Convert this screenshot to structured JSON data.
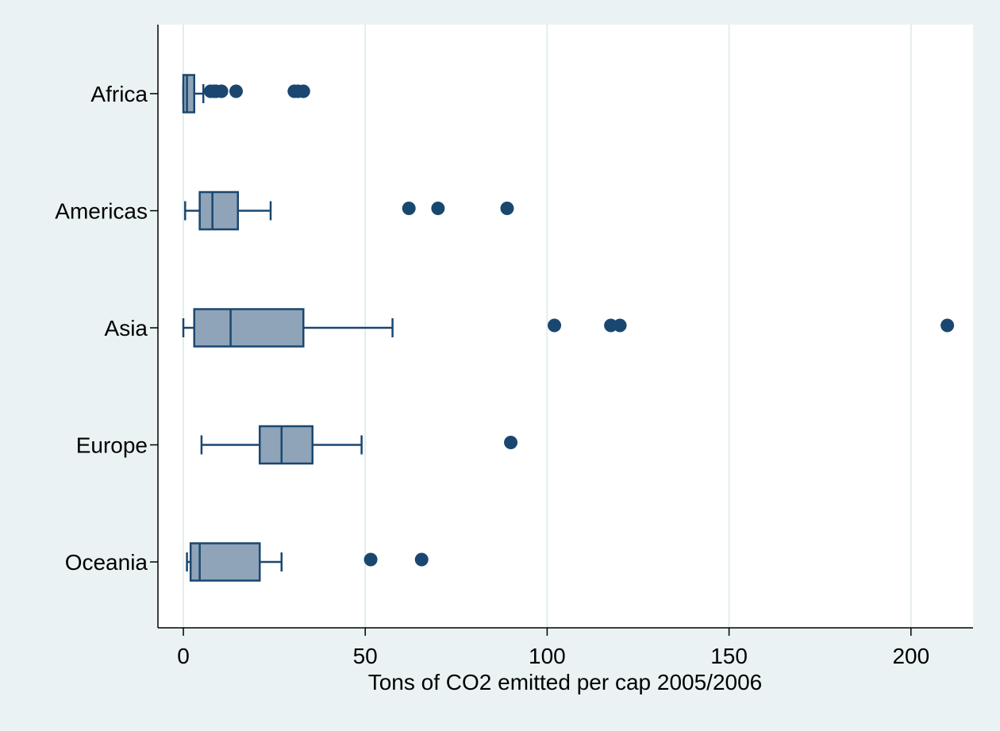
{
  "chart_data": {
    "type": "boxplot",
    "orientation": "horizontal",
    "title": "",
    "xlabel": "Tons of CO2 emitted per cap 2005/2006",
    "ylabel": "",
    "xlim": [
      -7,
      217
    ],
    "xticks": [
      0,
      50,
      100,
      150,
      200
    ],
    "grid": "vertical",
    "legend": "none",
    "categories": [
      "Africa",
      "Americas",
      "Asia",
      "Europe",
      "Oceania"
    ],
    "boxes": [
      {
        "name": "Africa",
        "whisker_low": 0,
        "q1": 0,
        "median": 1,
        "q3": 3,
        "whisker_high": 5.5,
        "outliers": [
          7.5,
          8.5,
          9,
          10.5,
          14.5,
          30.5,
          31.5,
          33
        ]
      },
      {
        "name": "Americas",
        "whisker_low": 0.5,
        "q1": 4.5,
        "median": 8,
        "q3": 15,
        "whisker_high": 24,
        "outliers": [
          62,
          70,
          89
        ]
      },
      {
        "name": "Asia",
        "whisker_low": 0,
        "q1": 3,
        "median": 13,
        "q3": 33,
        "whisker_high": 57.5,
        "outliers": [
          102,
          117.5,
          120,
          210
        ]
      },
      {
        "name": "Europe",
        "whisker_low": 5,
        "q1": 21,
        "median": 27,
        "q3": 35.5,
        "whisker_high": 49,
        "outliers": [
          90
        ]
      },
      {
        "name": "Oceania",
        "whisker_low": 1,
        "q1": 2,
        "median": 4.5,
        "q3": 21,
        "whisker_high": 27,
        "outliers": [
          51.5,
          65.5
        ]
      }
    ],
    "colors": {
      "box_fill": "#8fa4b8",
      "box_stroke": "#1a476f",
      "marker": "#1a476f",
      "grid": "#e2ecee",
      "plot_bg": "#ffffff",
      "outer_bg": "#eaf2f3"
    }
  }
}
